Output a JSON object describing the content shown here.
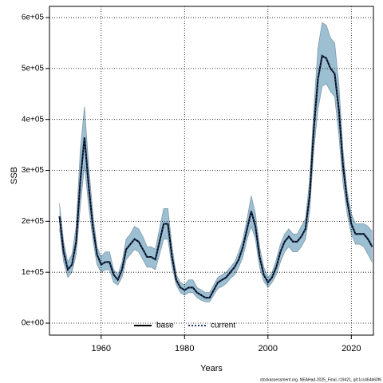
{
  "chart_data": {
    "type": "line",
    "xlabel": "Years",
    "ylabel": "SSB",
    "footer": "stockassessment.org, NEAHad-2025_Final, r19421, git:1cc464b60f6",
    "x": [
      1950,
      1951,
      1952,
      1953,
      1954,
      1955,
      1956,
      1957,
      1958,
      1959,
      1960,
      1961,
      1962,
      1963,
      1964,
      1965,
      1966,
      1967,
      1968,
      1969,
      1970,
      1971,
      1972,
      1973,
      1974,
      1975,
      1976,
      1977,
      1978,
      1979,
      1980,
      1981,
      1982,
      1983,
      1984,
      1985,
      1986,
      1987,
      1988,
      1989,
      1990,
      1991,
      1992,
      1993,
      1994,
      1995,
      1996,
      1997,
      1998,
      1999,
      2000,
      2001,
      2002,
      2003,
      2004,
      2005,
      2006,
      2007,
      2008,
      2009,
      2010,
      2011,
      2012,
      2013,
      2014,
      2015,
      2016,
      2017,
      2018,
      2019,
      2020,
      2021,
      2022,
      2023,
      2024,
      2025
    ],
    "series": [
      {
        "name": "base",
        "color": "#000000",
        "style": "solid",
        "values": [
          210000,
          140000,
          105000,
          115000,
          160000,
          280000,
          365000,
          270000,
          190000,
          135000,
          115000,
          120000,
          120000,
          95000,
          85000,
          105000,
          145000,
          155000,
          165000,
          160000,
          145000,
          130000,
          130000,
          125000,
          160000,
          195000,
          195000,
          130000,
          85000,
          70000,
          65000,
          70000,
          70000,
          60000,
          55000,
          50000,
          50000,
          65000,
          80000,
          85000,
          90000,
          100000,
          110000,
          125000,
          150000,
          185000,
          220000,
          190000,
          130000,
          95000,
          80000,
          90000,
          110000,
          140000,
          160000,
          170000,
          160000,
          160000,
          170000,
          185000,
          250000,
          380000,
          480000,
          525000,
          520000,
          500000,
          490000,
          420000,
          310000,
          240000,
          195000,
          175000,
          175000,
          175000,
          165000,
          150000
        ]
      },
      {
        "name": "current",
        "color": "#1f3a6e",
        "style": "dotted",
        "values": [
          210000,
          140000,
          105000,
          115000,
          160000,
          280000,
          365000,
          270000,
          190000,
          135000,
          115000,
          120000,
          120000,
          95000,
          85000,
          105000,
          145000,
          155000,
          165000,
          160000,
          145000,
          130000,
          130000,
          125000,
          160000,
          195000,
          195000,
          130000,
          85000,
          70000,
          65000,
          70000,
          70000,
          60000,
          55000,
          50000,
          50000,
          65000,
          80000,
          85000,
          90000,
          100000,
          110000,
          125000,
          150000,
          185000,
          220000,
          190000,
          130000,
          95000,
          80000,
          90000,
          110000,
          140000,
          160000,
          170000,
          160000,
          160000,
          170000,
          185000,
          250000,
          380000,
          480000,
          525000,
          520000,
          500000,
          490000,
          420000,
          310000,
          240000,
          195000,
          175000,
          175000,
          175000,
          165000,
          150000
        ]
      }
    ],
    "band": {
      "color": "#9dbfd2",
      "upper": [
        235000,
        160000,
        120000,
        135000,
        190000,
        340000,
        425000,
        310000,
        215000,
        150000,
        130000,
        140000,
        140000,
        105000,
        95000,
        120000,
        165000,
        175000,
        190000,
        185000,
        170000,
        150000,
        150000,
        145000,
        185000,
        225000,
        225000,
        150000,
        95000,
        80000,
        75000,
        85000,
        85000,
        70000,
        65000,
        60000,
        60000,
        75000,
        90000,
        95000,
        100000,
        110000,
        120000,
        140000,
        165000,
        205000,
        250000,
        215000,
        150000,
        110000,
        90000,
        100000,
        125000,
        155000,
        175000,
        185000,
        175000,
        175000,
        190000,
        205000,
        280000,
        420000,
        540000,
        590000,
        585000,
        560000,
        550000,
        470000,
        340000,
        260000,
        215000,
        195000,
        195000,
        195000,
        190000,
        180000
      ],
      "lower": [
        185000,
        120000,
        90000,
        100000,
        135000,
        230000,
        310000,
        230000,
        165000,
        115000,
        100000,
        105000,
        105000,
        80000,
        75000,
        90000,
        125000,
        135000,
        145000,
        140000,
        125000,
        110000,
        110000,
        105000,
        135000,
        165000,
        165000,
        110000,
        75000,
        60000,
        55000,
        60000,
        60000,
        50000,
        45000,
        42000,
        42000,
        55000,
        68000,
        72000,
        78000,
        88000,
        95000,
        110000,
        130000,
        165000,
        190000,
        165000,
        110000,
        82000,
        70000,
        80000,
        95000,
        120000,
        140000,
        150000,
        140000,
        140000,
        150000,
        165000,
        220000,
        340000,
        420000,
        465000,
        470000,
        455000,
        445000,
        370000,
        275000,
        215000,
        175000,
        155000,
        155000,
        150000,
        135000,
        120000
      ]
    },
    "xlim": [
      1947.6,
      2025.3
    ],
    "ylim": [
      -23500,
      622000
    ],
    "xticks": [
      1960,
      1980,
      2000,
      2020
    ],
    "yticks": [
      {
        "value": 0,
        "label": "0e+00"
      },
      {
        "value": 100000,
        "label": "1e+05"
      },
      {
        "value": 200000,
        "label": "2e+05"
      },
      {
        "value": 300000,
        "label": "3e+05"
      },
      {
        "value": 400000,
        "label": "4e+05"
      },
      {
        "value": 500000,
        "label": "5e+05"
      },
      {
        "value": 600000,
        "label": "6e+05"
      }
    ],
    "grid": true,
    "legend": "bottom"
  }
}
